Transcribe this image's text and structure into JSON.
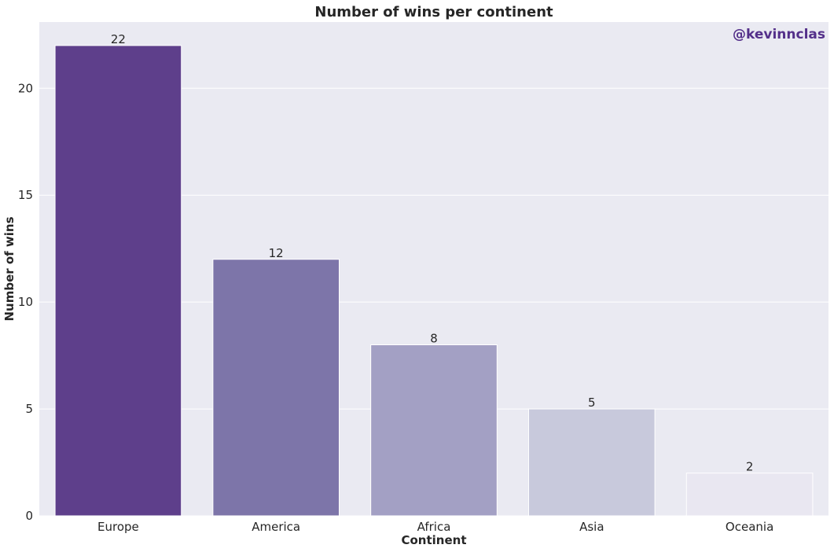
{
  "chart_data": {
    "type": "bar",
    "title": "Number of wins per continent",
    "xlabel": "Continent",
    "ylabel": "Number of wins",
    "categories": [
      "Europe",
      "America",
      "Africa",
      "Asia",
      "Oceania"
    ],
    "values": [
      22,
      12,
      8,
      5,
      2
    ],
    "data_labels": [
      "22",
      "12",
      "8",
      "5",
      "2"
    ],
    "ylim": [
      0,
      23.1
    ],
    "yticks": [
      0,
      5,
      10,
      15,
      20
    ],
    "grid": true,
    "legend": "none",
    "bar_colors": [
      "#5e3f8b",
      "#7d75a9",
      "#a3a0c4",
      "#c8c9dc",
      "#e9e7f1"
    ]
  },
  "watermark": "@kevinnclas",
  "colors": {
    "plot_background": "#eaeaf2",
    "grid": "#ffffff",
    "watermark": "#54308a",
    "text": "#262626"
  }
}
